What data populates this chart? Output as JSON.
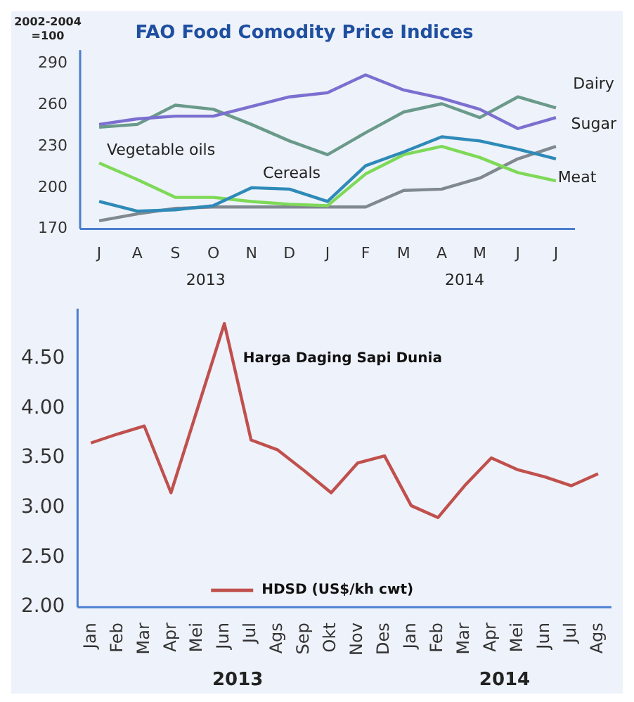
{
  "chart_data": [
    {
      "type": "line",
      "title": "FAO Food Comodity Price Indices",
      "ylabel": "2002-2004 =100",
      "categories": [
        "J",
        "A",
        "S",
        "O",
        "N",
        "D",
        "J",
        "F",
        "M",
        "A",
        "M",
        "J",
        "J"
      ],
      "series": [
        {
          "color": "#7b6fd0",
          "values": [
            246,
            250,
            252,
            252,
            259,
            266,
            269,
            282,
            271,
            265,
            257,
            243,
            251
          ]
        },
        {
          "color": "#6a9a8a",
          "values": [
            244,
            246,
            260,
            257,
            246,
            234,
            224,
            240,
            255,
            261,
            251,
            266,
            258
          ]
        },
        {
          "color": "#2e8ab8",
          "values": [
            190,
            183,
            184,
            187,
            200,
            199,
            190,
            216,
            226,
            237,
            234,
            228,
            221
          ]
        },
        {
          "color": "#7ed957",
          "values": [
            218,
            206,
            193,
            193,
            190,
            188,
            187,
            210,
            224,
            230,
            222,
            211,
            205
          ]
        },
        {
          "color": "#808890",
          "values": [
            176,
            181,
            185,
            186,
            186,
            186,
            186,
            186,
            198,
            199,
            207,
            221,
            230
          ]
        }
      ],
      "ylim": [
        170,
        300
      ],
      "yticks": [
        170,
        200,
        230,
        260,
        290
      ],
      "grid": false,
      "legend": false,
      "marker": "none",
      "annotations": [
        "Dairy",
        "Sugar",
        "Meat",
        "Vegetable oils",
        "Cereals",
        "2013",
        "2014"
      ]
    },
    {
      "type": "line",
      "title": "Harga Daging Sapi Dunia",
      "categories": [
        "Jan",
        "Feb",
        "Mar",
        "Apr",
        "Mei",
        "Jun",
        "Jul",
        "Ags",
        "Sep",
        "Okt",
        "Nov",
        "Des",
        "Jan",
        "Feb",
        "Mar",
        "Apr",
        "Mei",
        "Jun",
        "Jul",
        "Ags"
      ],
      "series": [
        {
          "name": "HDSD (US$/kh cwt)",
          "color": "#c0504d",
          "values": [
            3.65,
            3.74,
            3.82,
            3.15,
            4.0,
            4.85,
            3.68,
            3.58,
            3.37,
            3.15,
            3.45,
            3.52,
            3.02,
            2.9,
            3.22,
            3.5,
            3.38,
            3.31,
            3.22,
            3.34
          ]
        }
      ],
      "ylim": [
        2,
        5
      ],
      "yticks": [
        {
          "value": 2,
          "label": "2.00"
        },
        {
          "value": 2.5,
          "label": "2.50"
        },
        {
          "value": 3,
          "label": "3.00"
        },
        {
          "value": 3.5,
          "label": "3.50"
        },
        {
          "value": 4,
          "label": "4.00"
        },
        {
          "value": 4.5,
          "label": "4.50"
        }
      ],
      "grid": false,
      "legend": "bottom",
      "marker": "none",
      "annotations": [
        "2013",
        "2014"
      ]
    }
  ]
}
